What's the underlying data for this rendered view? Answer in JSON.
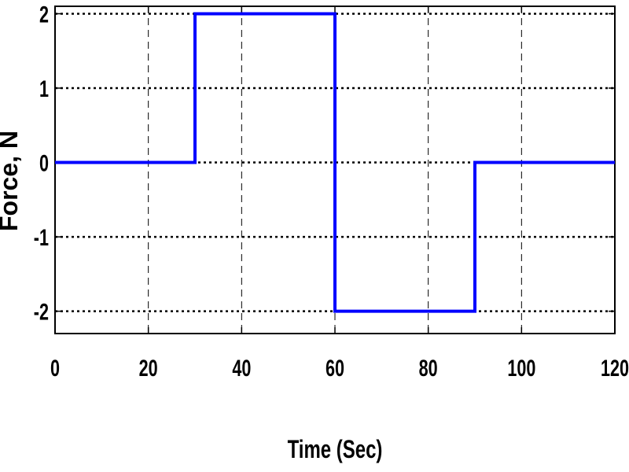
{
  "chart_data": {
    "type": "line",
    "title": "",
    "xlabel": "Time (Sec)",
    "ylabel": "Force, N",
    "xlim": [
      0,
      120
    ],
    "ylim": [
      -2.3,
      2.1
    ],
    "xticks": [
      0,
      20,
      40,
      60,
      80,
      100,
      120
    ],
    "xtick_labels": [
      "0",
      "20",
      "40",
      "60",
      "80",
      "100",
      "120"
    ],
    "yticks": [
      2,
      1,
      0,
      -1,
      -2
    ],
    "ytick_labels": [
      "2",
      "1",
      "0",
      "-1",
      "-2"
    ],
    "grid": true,
    "series": [
      {
        "color": "#0000ff",
        "x": [
          0,
          30,
          30,
          60,
          60,
          90,
          90,
          120
        ],
        "y": [
          0,
          0,
          2,
          2,
          -2,
          -2,
          0,
          0
        ]
      }
    ]
  }
}
